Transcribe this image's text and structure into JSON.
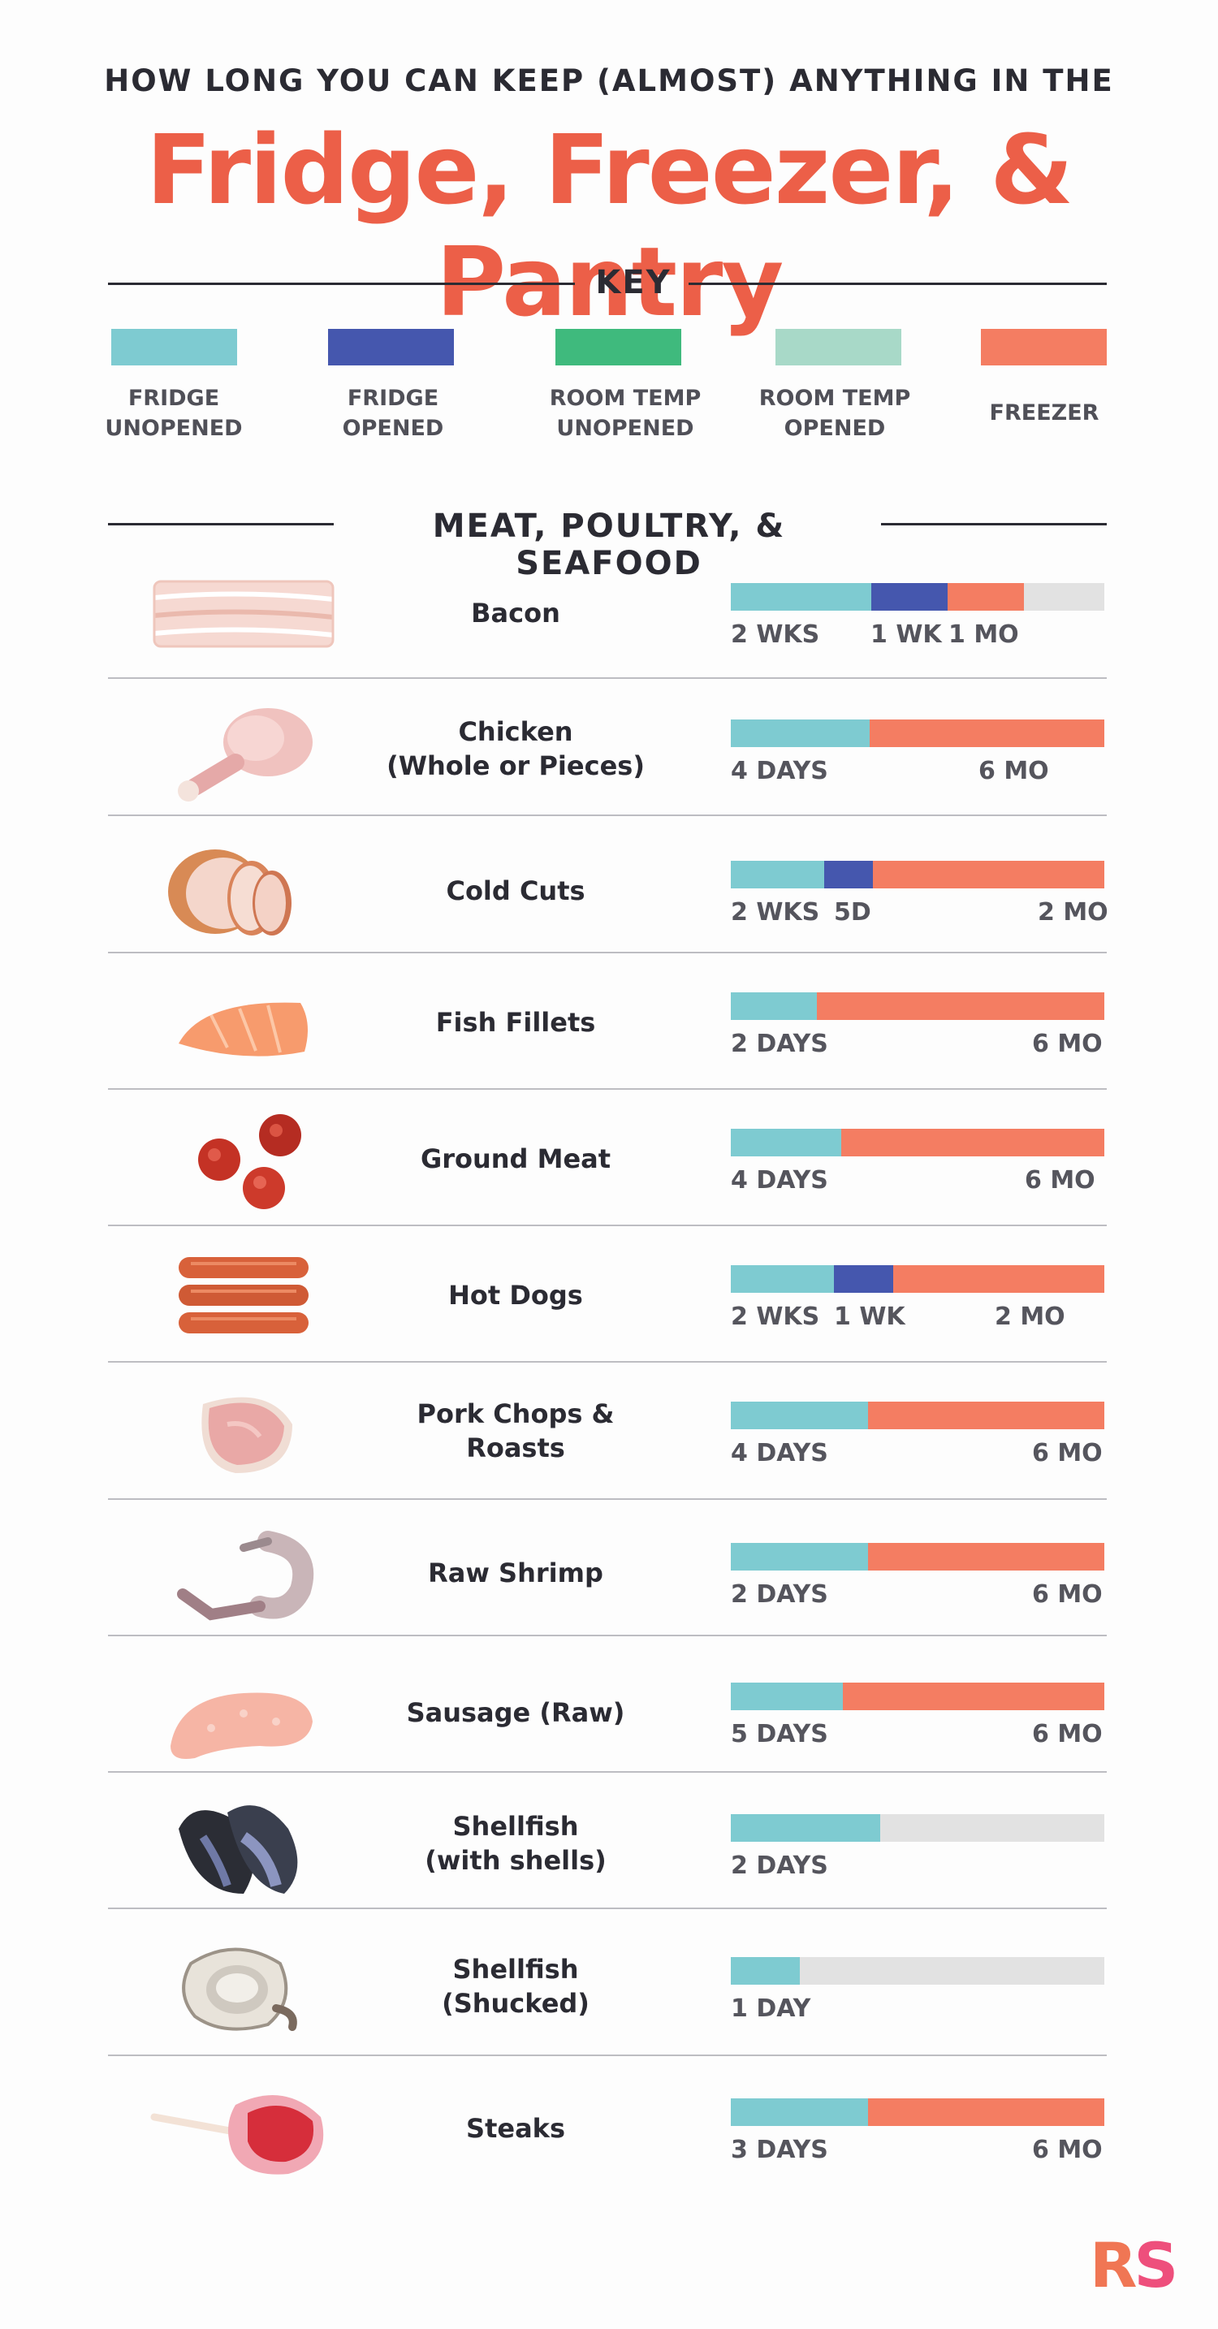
{
  "header": {
    "pre_title": "HOW LONG YOU CAN KEEP (ALMOST) ANYTHING IN THE",
    "title": "Fridge, Freezer, & Pantry"
  },
  "key": {
    "heading": "KEY",
    "items": [
      {
        "label": "FRIDGE\nUNOPENED",
        "color": "#7ecbd1"
      },
      {
        "label": "FRIDGE\nOPENED",
        "color": "#4557ae"
      },
      {
        "label": "ROOM TEMP\nUNOPENED",
        "color": "#3fba7d"
      },
      {
        "label": "ROOM TEMP\nOPENED",
        "color": "#a8d9c8"
      },
      {
        "label": "FREEZER",
        "color": "#f47d62"
      }
    ]
  },
  "section": {
    "heading": "MEAT, POULTRY, & SEAFOOD",
    "items": [
      {
        "name": "Bacon",
        "icon": "bacon-icon",
        "segments": [
          {
            "type": "fridge_unopened",
            "share": 0.376
          },
          {
            "type": "fridge_opened",
            "share": 0.204
          },
          {
            "type": "freezer",
            "share": 0.204
          }
        ],
        "labels": [
          "2 WKS",
          "1 WK",
          "1 MO"
        ]
      },
      {
        "name": "Chicken\n(Whole or Pieces)",
        "icon": "chicken-icon",
        "segments": [
          {
            "type": "fridge_unopened",
            "share": 0.372
          },
          {
            "type": "freezer",
            "share": 0.628
          }
        ],
        "labels": [
          "4 DAYS",
          "6 MO"
        ]
      },
      {
        "name": "Cold Cuts",
        "icon": "cold-cuts-icon",
        "segments": [
          {
            "type": "fridge_unopened",
            "share": 0.25
          },
          {
            "type": "fridge_opened",
            "share": 0.13
          },
          {
            "type": "freezer",
            "share": 0.62
          }
        ],
        "labels": [
          "2 WKS",
          "5D",
          "2 MO"
        ]
      },
      {
        "name": "Fish Fillets",
        "icon": "fish-fillet-icon",
        "segments": [
          {
            "type": "fridge_unopened",
            "share": 0.23
          },
          {
            "type": "freezer",
            "share": 0.77
          }
        ],
        "labels": [
          "2 DAYS",
          "6 MO"
        ]
      },
      {
        "name": "Ground Meat",
        "icon": "ground-meat-icon",
        "segments": [
          {
            "type": "fridge_unopened",
            "share": 0.295
          },
          {
            "type": "freezer",
            "share": 0.705
          }
        ],
        "labels": [
          "4 DAYS",
          "6 MO"
        ]
      },
      {
        "name": "Hot Dogs",
        "icon": "hot-dogs-icon",
        "segments": [
          {
            "type": "fridge_unopened",
            "share": 0.275
          },
          {
            "type": "fridge_opened",
            "share": 0.16
          },
          {
            "type": "freezer",
            "share": 0.565
          }
        ],
        "labels": [
          "2 WKS",
          "1 WK",
          "2 MO"
        ]
      },
      {
        "name": "Pork Chops &\nRoasts",
        "icon": "pork-chop-icon",
        "segments": [
          {
            "type": "fridge_unopened",
            "share": 0.368
          },
          {
            "type": "freezer",
            "share": 0.632
          }
        ],
        "labels": [
          "4 DAYS",
          "6 MO"
        ]
      },
      {
        "name": "Raw Shrimp",
        "icon": "shrimp-icon",
        "segments": [
          {
            "type": "fridge_unopened",
            "share": 0.368
          },
          {
            "type": "freezer",
            "share": 0.632
          }
        ],
        "labels": [
          "2 DAYS",
          "6 MO"
        ]
      },
      {
        "name": "Sausage (Raw)",
        "icon": "sausage-icon",
        "segments": [
          {
            "type": "fridge_unopened",
            "share": 0.3
          },
          {
            "type": "freezer",
            "share": 0.7
          }
        ],
        "labels": [
          "5 DAYS",
          "6 MO"
        ]
      },
      {
        "name": "Shellfish\n(with shells)",
        "icon": "mussels-icon",
        "segments": [
          {
            "type": "fridge_unopened",
            "share": 0.4
          }
        ],
        "labels": [
          "2 DAYS"
        ]
      },
      {
        "name": "Shellfish\n(Shucked)",
        "icon": "oyster-icon",
        "segments": [
          {
            "type": "fridge_unopened",
            "share": 0.185
          }
        ],
        "labels": [
          "1 DAY"
        ]
      },
      {
        "name": "Steaks",
        "icon": "steak-icon",
        "segments": [
          {
            "type": "fridge_unopened",
            "share": 0.368
          },
          {
            "type": "freezer",
            "share": 0.632
          }
        ],
        "labels": [
          "3 DAYS",
          "6 MO"
        ]
      }
    ]
  },
  "colors": {
    "fridge_unopened": "#7ecbd1",
    "fridge_opened": "#4557ae",
    "room_temp_unopened": "#3fba7d",
    "room_temp_opened": "#a8d9c8",
    "freezer": "#f47d62",
    "track": "#e2e2e2",
    "title": "#ec5f48"
  },
  "logo": {
    "r": "R",
    "s": "S"
  }
}
